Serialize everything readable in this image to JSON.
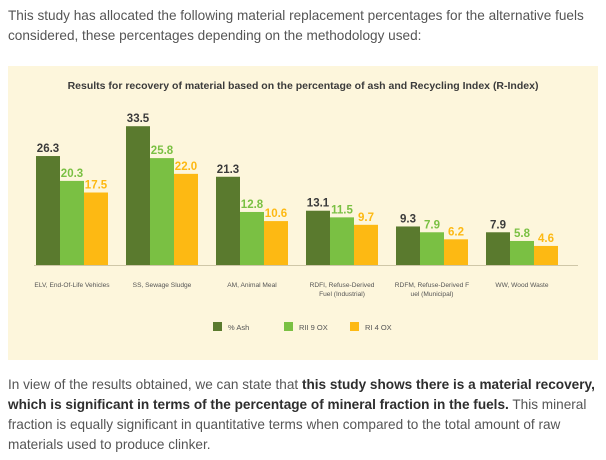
{
  "intro": {
    "text": "This study has allocated the following material replacement percentages for the alternative fuels considered, these percentages depending on the methodology used:"
  },
  "outro": {
    "text_before": "In view of the results obtained, we can state that ",
    "text_bold": "this study shows there is a material recovery, which is significant in terms of the percentage of mineral fraction in the fuels.",
    "text_after": " This mineral fraction is equally significant in quantitative terms when compared to the total amount of raw materials used to produce clinker."
  },
  "chart_data": {
    "type": "bar",
    "title": "Results for recovery of material based on the percentage of ash and Recycling Index (R-Index)",
    "categories": [
      [
        "ELV, End-Of-Life Vehicles"
      ],
      [
        "SS, Sewage Sludge"
      ],
      [
        "AM, Animal Meal"
      ],
      [
        "RDFI, Refuse-Derived",
        "Fuel (Industrial)"
      ],
      [
        "RDFM, Refuse-Derived F",
        "uel (Municipal)"
      ],
      [
        "WW, Wood Waste"
      ]
    ],
    "series": [
      {
        "name": "% Ash",
        "color": "#5a7a2e",
        "values": [
          26.3,
          33.5,
          21.3,
          13.1,
          9.3,
          7.9
        ]
      },
      {
        "name": "RII 9 OX",
        "color": "#7ac043",
        "values": [
          20.3,
          25.8,
          12.8,
          11.5,
          7.9,
          5.8
        ]
      },
      {
        "name": "RI 4 OX",
        "color": "#fdb913",
        "values": [
          17.5,
          22.0,
          10.6,
          9.7,
          6.2,
          4.6
        ]
      }
    ],
    "value_label_colors": [
      "#3b3b3b",
      "#7ac043",
      "#fdb913"
    ],
    "ylim": [
      0,
      35
    ],
    "grid": false,
    "legend": "bottom"
  }
}
